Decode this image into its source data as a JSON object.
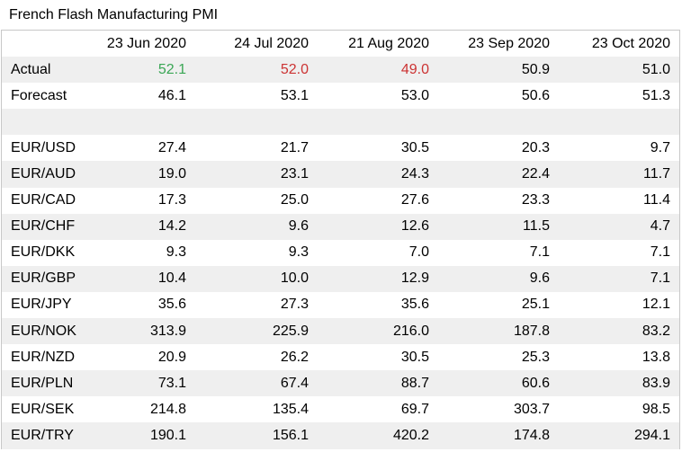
{
  "title": "French Flash Manufacturing PMI",
  "columns": [
    "",
    "23 Jun 2020",
    "24 Jul 2020",
    "21 Aug 2020",
    "23 Sep 2020",
    "23 Oct 2020"
  ],
  "actual": {
    "label": "Actual",
    "values": [
      "52.1",
      "52.0",
      "49.0",
      "50.9",
      "51.0"
    ]
  },
  "actual_colors": [
    "up",
    "down",
    "down",
    "",
    ""
  ],
  "forecast": {
    "label": "Forecast",
    "values": [
      "46.1",
      "53.1",
      "53.0",
      "50.6",
      "51.3"
    ]
  },
  "pairs": [
    {
      "label": "EUR/USD",
      "values": [
        "27.4",
        "21.7",
        "30.5",
        "20.3",
        "9.7"
      ]
    },
    {
      "label": "EUR/AUD",
      "values": [
        "19.0",
        "23.1",
        "24.3",
        "22.4",
        "11.7"
      ]
    },
    {
      "label": "EUR/CAD",
      "values": [
        "17.3",
        "25.0",
        "27.6",
        "23.3",
        "11.4"
      ]
    },
    {
      "label": "EUR/CHF",
      "values": [
        "14.2",
        "9.6",
        "12.6",
        "11.5",
        "4.7"
      ]
    },
    {
      "label": "EUR/DKK",
      "values": [
        "9.3",
        "9.3",
        "7.0",
        "7.1",
        "7.1"
      ]
    },
    {
      "label": "EUR/GBP",
      "values": [
        "10.4",
        "10.0",
        "12.9",
        "9.6",
        "7.1"
      ]
    },
    {
      "label": "EUR/JPY",
      "values": [
        "35.6",
        "27.3",
        "35.6",
        "25.1",
        "12.1"
      ]
    },
    {
      "label": "EUR/NOK",
      "values": [
        "313.9",
        "225.9",
        "216.0",
        "187.8",
        "83.2"
      ]
    },
    {
      "label": "EUR/NZD",
      "values": [
        "20.9",
        "26.2",
        "30.5",
        "25.3",
        "13.8"
      ]
    },
    {
      "label": "EUR/PLN",
      "values": [
        "73.1",
        "67.4",
        "88.7",
        "60.6",
        "83.9"
      ]
    },
    {
      "label": "EUR/SEK",
      "values": [
        "214.8",
        "135.4",
        "69.7",
        "303.7",
        "98.5"
      ]
    },
    {
      "label": "EUR/TRY",
      "values": [
        "190.1",
        "156.1",
        "420.2",
        "174.8",
        "294.1"
      ]
    }
  ],
  "colors": {
    "up": "#3aa655",
    "down": "#cc3333",
    "shade": "#efefef",
    "border": "#c8c8c8"
  }
}
